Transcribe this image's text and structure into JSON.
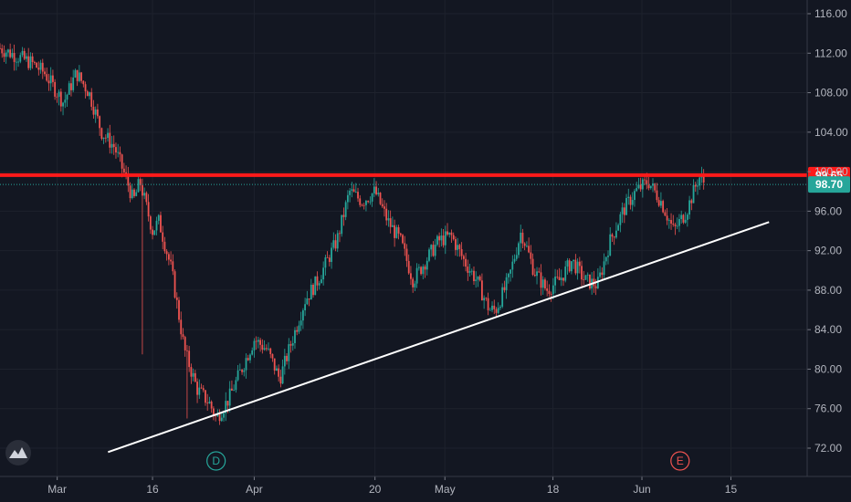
{
  "chart_data": {
    "type": "candlestick",
    "title": "",
    "xlabel": "",
    "ylabel": "",
    "ylim": [
      70,
      117
    ],
    "y_ticks": [
      "72.00",
      "76.00",
      "80.00",
      "84.00",
      "88.00",
      "92.00",
      "96.00",
      "100.00",
      "104.00",
      "108.00",
      "112.00",
      "116.00"
    ],
    "y_tick_values": [
      72,
      76,
      80,
      84,
      88,
      92,
      96,
      100,
      104,
      108,
      112,
      116
    ],
    "x_ticks": [
      {
        "label": "Mar",
        "day": 0
      },
      {
        "label": "16",
        "day": 15
      },
      {
        "label": "Apr",
        "day": 31
      },
      {
        "label": "20",
        "day": 50
      },
      {
        "label": "May",
        "day": 61
      },
      {
        "label": "18",
        "day": 78
      },
      {
        "label": "Jun",
        "day": 92
      },
      {
        "label": "15",
        "day": 106
      }
    ],
    "x_domain": [
      -9,
      118
    ],
    "price_levels": [
      {
        "name": "resistance",
        "value": 99.65,
        "label": "99.65",
        "color": "#ff1a1a"
      },
      {
        "name": "last",
        "value": 98.7,
        "label": "98.70",
        "color": "#26a69a"
      }
    ],
    "trendline": {
      "color": "#ffffff",
      "points": [
        {
          "day": 8,
          "price": 71.6
        },
        {
          "day": 112,
          "price": 94.9
        }
      ]
    },
    "events": [
      {
        "label": "D",
        "day": 25,
        "color": "#26a69a"
      },
      {
        "label": "E",
        "day": 98,
        "color": "#ef5350"
      }
    ],
    "path_anchors": [
      {
        "day": -9,
        "price": 112.5
      },
      {
        "day": -4,
        "price": 111
      },
      {
        "day": -2,
        "price": 110
      },
      {
        "day": 1,
        "price": 107
      },
      {
        "day": 3,
        "price": 110
      },
      {
        "day": 5,
        "price": 108
      },
      {
        "day": 7,
        "price": 104
      },
      {
        "day": 9,
        "price": 102.5
      },
      {
        "day": 11,
        "price": 99
      },
      {
        "day": 12,
        "price": 97
      },
      {
        "day": 13,
        "price": 99
      },
      {
        "day": 15,
        "price": 94
      },
      {
        "day": 16,
        "price": 95
      },
      {
        "day": 18,
        "price": 90
      },
      {
        "day": 20,
        "price": 82
      },
      {
        "day": 22,
        "price": 78
      },
      {
        "day": 24,
        "price": 76.5
      },
      {
        "day": 25,
        "price": 75
      },
      {
        "day": 27,
        "price": 77
      },
      {
        "day": 29,
        "price": 80
      },
      {
        "day": 31,
        "price": 83
      },
      {
        "day": 33,
        "price": 82
      },
      {
        "day": 35,
        "price": 79
      },
      {
        "day": 37,
        "price": 83
      },
      {
        "day": 39,
        "price": 87
      },
      {
        "day": 41,
        "price": 89
      },
      {
        "day": 44,
        "price": 93
      },
      {
        "day": 46,
        "price": 98
      },
      {
        "day": 48,
        "price": 97
      },
      {
        "day": 50,
        "price": 98
      },
      {
        "day": 52,
        "price": 95
      },
      {
        "day": 54,
        "price": 93
      },
      {
        "day": 56,
        "price": 89
      },
      {
        "day": 58,
        "price": 91
      },
      {
        "day": 60,
        "price": 93
      },
      {
        "day": 62,
        "price": 93.5
      },
      {
        "day": 64,
        "price": 91
      },
      {
        "day": 66,
        "price": 89
      },
      {
        "day": 68,
        "price": 86
      },
      {
        "day": 69,
        "price": 86
      },
      {
        "day": 71,
        "price": 89
      },
      {
        "day": 73,
        "price": 94
      },
      {
        "day": 75,
        "price": 90
      },
      {
        "day": 77,
        "price": 88
      },
      {
        "day": 79,
        "price": 89
      },
      {
        "day": 81,
        "price": 91
      },
      {
        "day": 83,
        "price": 89
      },
      {
        "day": 85,
        "price": 88.5
      },
      {
        "day": 87,
        "price": 93
      },
      {
        "day": 89,
        "price": 96
      },
      {
        "day": 91,
        "price": 98
      },
      {
        "day": 93,
        "price": 99
      },
      {
        "day": 95,
        "price": 97
      },
      {
        "day": 97,
        "price": 94
      },
      {
        "day": 99,
        "price": 96
      },
      {
        "day": 101,
        "price": 99.5
      },
      {
        "day": 102,
        "price": 98.7
      }
    ]
  },
  "icons": {
    "logo": "tradingview-logo-icon"
  }
}
